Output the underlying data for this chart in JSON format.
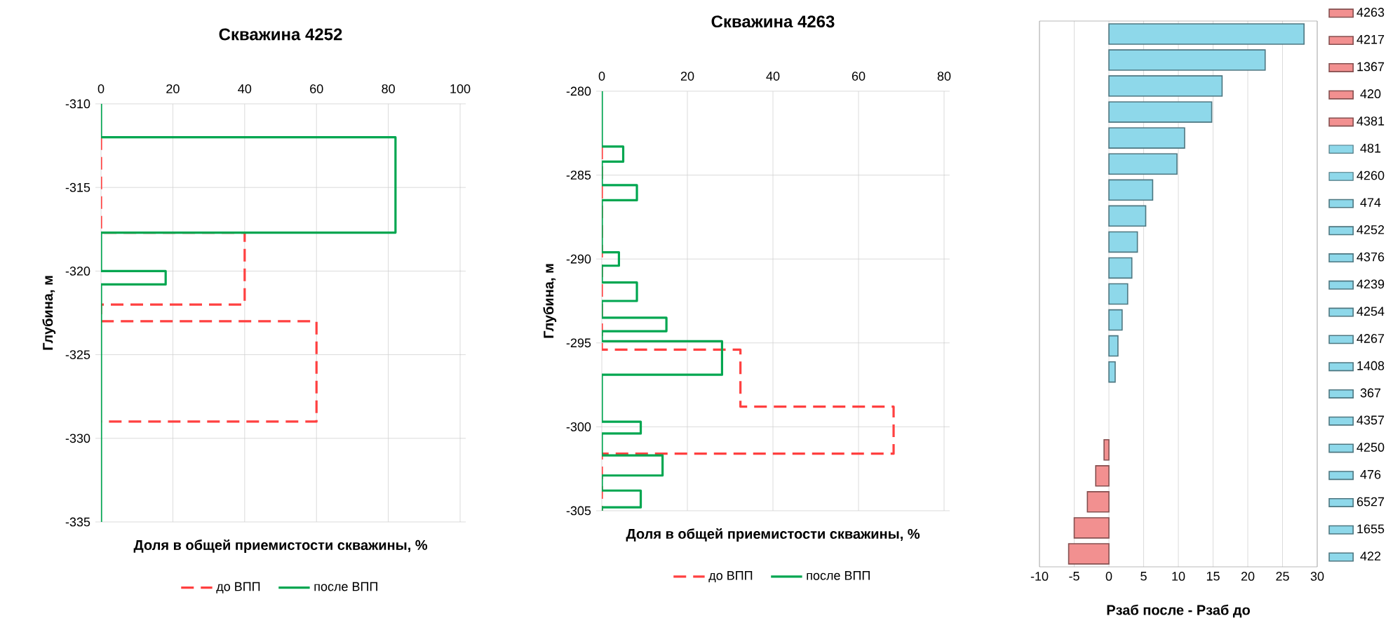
{
  "chart_data": [
    {
      "type": "line",
      "title": "Скважина 4252",
      "xlabel": "Доля в общей приемистости скважины, %",
      "ylabel": "Глубина, м",
      "xlim": [
        0,
        100
      ],
      "xticks": [
        0,
        20,
        40,
        60,
        80,
        100
      ],
      "ylim": [
        -335,
        -310
      ],
      "yticks": [
        -335,
        -330,
        -325,
        -320,
        -315,
        -310
      ],
      "grid": true,
      "legend": "bottom",
      "series": [
        {
          "name": "до ВПП",
          "color": "#ff4040",
          "line_style": "dashed",
          "x": [
            0,
            0,
            40,
            40,
            0,
            0,
            60,
            60,
            0
          ],
          "values": [
            -312,
            -317.7,
            -317.7,
            -322,
            -322,
            -323,
            -323,
            -329,
            -329
          ]
        },
        {
          "name": "после ВПП",
          "color": "#00a650",
          "line_style": "solid",
          "x": [
            0,
            0,
            82,
            82,
            0,
            0,
            18,
            18,
            0,
            0
          ],
          "values": [
            -310,
            -312,
            -312,
            -317.7,
            -317.7,
            -320,
            -320,
            -320.8,
            -320.8,
            -335
          ]
        }
      ]
    },
    {
      "type": "line",
      "title": "Скважина 4263",
      "xlabel": "Доля в общей приемистости скважины, %",
      "ylabel": "Глубина, м",
      "xlim": [
        0,
        80
      ],
      "xticks": [
        0,
        20,
        40,
        60,
        80
      ],
      "ylim": [
        -305,
        -280
      ],
      "yticks": [
        -305,
        -300,
        -295,
        -290,
        -285,
        -280
      ],
      "grid": true,
      "legend": "bottom",
      "series": [
        {
          "name": "до ВПП",
          "color": "#ff4040",
          "line_style": "dashed",
          "x": [
            0,
            0,
            32.4,
            32.4,
            68.2,
            68.2,
            0,
            0
          ],
          "values": [
            -283.3,
            -295.4,
            -295.4,
            -298.8,
            -298.8,
            -301.6,
            -301.6,
            -305
          ]
        },
        {
          "name": "после ВПП",
          "color": "#00a650",
          "line_style": "solid",
          "x": [
            0,
            0,
            5,
            5,
            0,
            0,
            8.2,
            8.2,
            0,
            0,
            4,
            4,
            0,
            0,
            8.2,
            8.2,
            0,
            0,
            15.1,
            15.1,
            0,
            0,
            28.1,
            28.1,
            0,
            0,
            9.1,
            9.1,
            0,
            0,
            14.2,
            14.2,
            0,
            0,
            9.1,
            9.1,
            0,
            0
          ],
          "values": [
            -280,
            -283.3,
            -283.3,
            -284.2,
            -284.2,
            -285.6,
            -285.6,
            -286.5,
            -286.5,
            -289.6,
            -289.6,
            -290.4,
            -290.4,
            -291.4,
            -291.4,
            -292.5,
            -292.5,
            -293.5,
            -293.5,
            -294.3,
            -294.3,
            -294.9,
            -294.9,
            -296.9,
            -296.9,
            -299.7,
            -299.7,
            -300.4,
            -300.4,
            -301.7,
            -301.7,
            -302.9,
            -302.9,
            -303.8,
            -303.8,
            -304.8,
            -304.8,
            -305
          ]
        }
      ]
    },
    {
      "type": "bar",
      "orientation": "horizontal",
      "xlabel": "Рзаб после - Рзаб до",
      "xlim": [
        -10,
        30
      ],
      "xticks": [
        -10,
        -5,
        0,
        5,
        10,
        15,
        20,
        25,
        30
      ],
      "grid": "x",
      "legend": "right",
      "tick_labels": "x",
      "categories": [
        null,
        null,
        null,
        null,
        null,
        null,
        null,
        null,
        null,
        null,
        null,
        null,
        null,
        null,
        null,
        null,
        null,
        null,
        null,
        null,
        null
      ],
      "series": [
        {
          "name": "422",
          "color": "#8ed8ea",
          "values": [
            28.1,
            null,
            null,
            null,
            null,
            null,
            null,
            null,
            null,
            null,
            null,
            null,
            null,
            null,
            null,
            null,
            null,
            null,
            null,
            null,
            null
          ]
        },
        {
          "name": "1655",
          "color": "#8ed8ea",
          "values": [
            null,
            22.5,
            null,
            null,
            null,
            null,
            null,
            null,
            null,
            null,
            null,
            null,
            null,
            null,
            null,
            null,
            null,
            null,
            null,
            null,
            null
          ]
        },
        {
          "name": "6527",
          "color": "#8ed8ea",
          "values": [
            null,
            null,
            16.3,
            null,
            null,
            null,
            null,
            null,
            null,
            null,
            null,
            null,
            null,
            null,
            null,
            null,
            null,
            null,
            null,
            null,
            null
          ]
        },
        {
          "name": "476",
          "color": "#8ed8ea",
          "values": [
            null,
            null,
            null,
            14.8,
            null,
            null,
            null,
            null,
            null,
            null,
            null,
            null,
            null,
            null,
            null,
            null,
            null,
            null,
            null,
            null,
            null
          ]
        },
        {
          "name": "4250",
          "color": "#8ed8ea",
          "values": [
            null,
            null,
            null,
            null,
            10.9,
            null,
            null,
            null,
            null,
            null,
            null,
            null,
            null,
            null,
            null,
            null,
            null,
            null,
            null,
            null,
            null
          ]
        },
        {
          "name": "4357",
          "color": "#8ed8ea",
          "values": [
            null,
            null,
            null,
            null,
            null,
            9.8,
            null,
            null,
            null,
            null,
            null,
            null,
            null,
            null,
            null,
            null,
            null,
            null,
            null,
            null,
            null
          ]
        },
        {
          "name": "367",
          "color": "#8ed8ea",
          "values": [
            null,
            null,
            null,
            null,
            null,
            null,
            6.3,
            null,
            null,
            null,
            null,
            null,
            null,
            null,
            null,
            null,
            null,
            null,
            null,
            null,
            null
          ]
        },
        {
          "name": "1408",
          "color": "#8ed8ea",
          "values": [
            null,
            null,
            null,
            null,
            null,
            null,
            null,
            5.3,
            null,
            null,
            null,
            null,
            null,
            null,
            null,
            null,
            null,
            null,
            null,
            null,
            null
          ]
        },
        {
          "name": "4267",
          "color": "#8ed8ea",
          "values": [
            null,
            null,
            null,
            null,
            null,
            null,
            null,
            null,
            4.1,
            null,
            null,
            null,
            null,
            null,
            null,
            null,
            null,
            null,
            null,
            null,
            null
          ]
        },
        {
          "name": "4254",
          "color": "#8ed8ea",
          "values": [
            null,
            null,
            null,
            null,
            null,
            null,
            null,
            null,
            null,
            3.3,
            null,
            null,
            null,
            null,
            null,
            null,
            null,
            null,
            null,
            null,
            null
          ]
        },
        {
          "name": "4239",
          "color": "#8ed8ea",
          "values": [
            null,
            null,
            null,
            null,
            null,
            null,
            null,
            null,
            null,
            null,
            2.7,
            null,
            null,
            null,
            null,
            null,
            null,
            null,
            null,
            null,
            null
          ]
        },
        {
          "name": "4376",
          "color": "#8ed8ea",
          "values": [
            null,
            null,
            null,
            null,
            null,
            null,
            null,
            null,
            null,
            null,
            null,
            1.9,
            null,
            null,
            null,
            null,
            null,
            null,
            null,
            null,
            null
          ]
        },
        {
          "name": "4252",
          "color": "#8ed8ea",
          "values": [
            null,
            null,
            null,
            null,
            null,
            null,
            null,
            null,
            null,
            null,
            null,
            null,
            1.3,
            null,
            null,
            null,
            null,
            null,
            null,
            null,
            null
          ]
        },
        {
          "name": "474",
          "color": "#8ed8ea",
          "values": [
            null,
            null,
            null,
            null,
            null,
            null,
            null,
            null,
            null,
            null,
            null,
            null,
            null,
            0.9,
            null,
            null,
            null,
            null,
            null,
            null,
            null
          ]
        },
        {
          "name": "4260",
          "color": "#8ed8ea",
          "values": [
            null,
            null,
            null,
            null,
            null,
            null,
            null,
            null,
            null,
            null,
            null,
            null,
            null,
            null,
            0,
            null,
            null,
            null,
            null,
            null,
            null
          ]
        },
        {
          "name": "481",
          "color": "#8ed8ea",
          "values": [
            null,
            null,
            null,
            null,
            null,
            null,
            null,
            null,
            null,
            null,
            null,
            null,
            null,
            null,
            null,
            0,
            null,
            null,
            null,
            null,
            null
          ]
        },
        {
          "name": "4381",
          "color": "#f29090",
          "values": [
            null,
            null,
            null,
            null,
            null,
            null,
            null,
            null,
            null,
            null,
            null,
            null,
            null,
            null,
            null,
            null,
            -0.7,
            null,
            null,
            null,
            null
          ]
        },
        {
          "name": "420",
          "color": "#f29090",
          "values": [
            null,
            null,
            null,
            null,
            null,
            null,
            null,
            null,
            null,
            null,
            null,
            null,
            null,
            null,
            null,
            null,
            null,
            -1.9,
            null,
            null,
            null
          ]
        },
        {
          "name": "1367",
          "color": "#f29090",
          "values": [
            null,
            null,
            null,
            null,
            null,
            null,
            null,
            null,
            null,
            null,
            null,
            null,
            null,
            null,
            null,
            null,
            null,
            null,
            -3.1,
            null,
            null
          ]
        },
        {
          "name": "4217",
          "color": "#f29090",
          "values": [
            null,
            null,
            null,
            null,
            null,
            null,
            null,
            null,
            null,
            null,
            null,
            null,
            null,
            null,
            null,
            null,
            null,
            null,
            null,
            -5.0,
            null
          ]
        },
        {
          "name": "4263",
          "color": "#f29090",
          "values": [
            null,
            null,
            null,
            null,
            null,
            null,
            null,
            null,
            null,
            null,
            null,
            null,
            null,
            null,
            null,
            null,
            null,
            null,
            null,
            null,
            -5.8
          ]
        }
      ]
    }
  ]
}
